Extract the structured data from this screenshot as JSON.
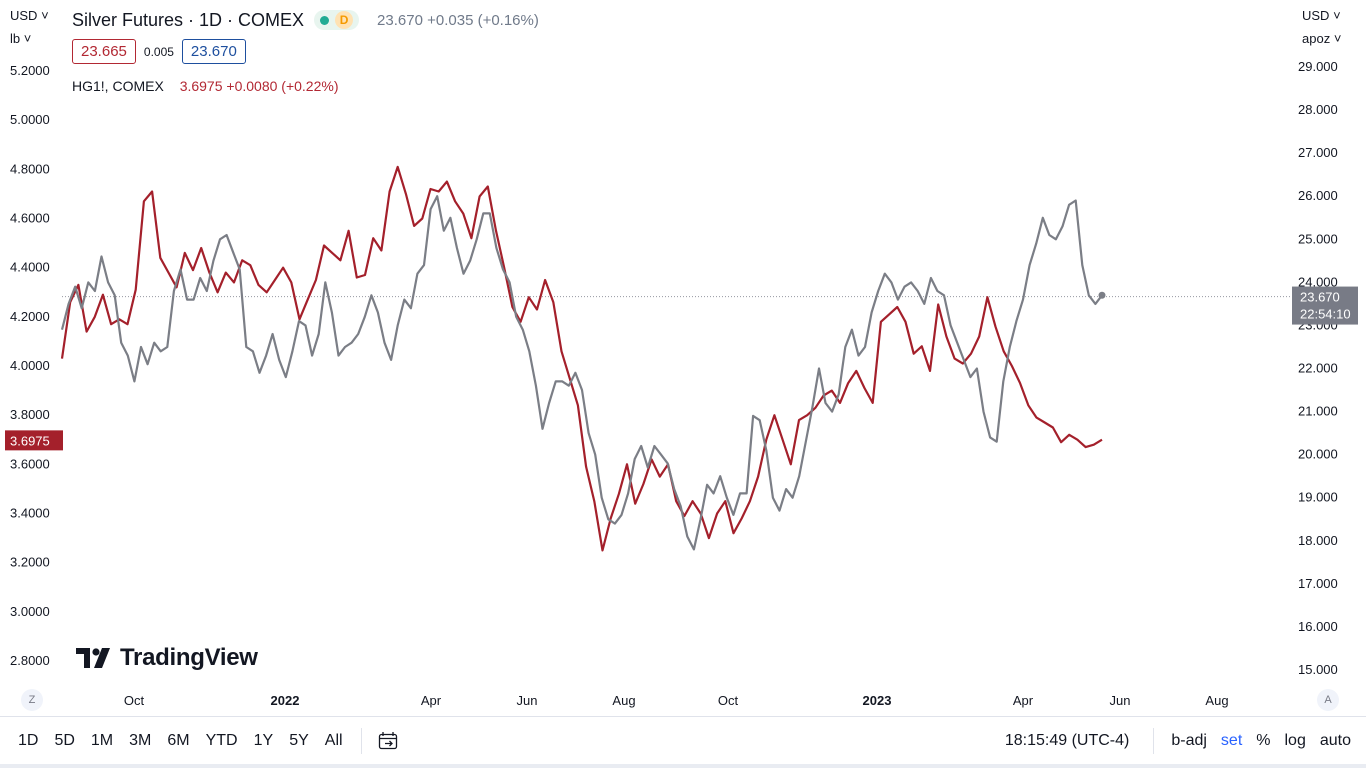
{
  "header": {
    "title": "Silver Futures · 1D · COMEX",
    "status_letter": "D",
    "last_price": "23.670",
    "change": "+0.035 (+0.16%)"
  },
  "quote": {
    "sell": "23.665",
    "spread": "0.005",
    "buy": "23.670"
  },
  "compare": {
    "symbol": "HG1!, COMEX",
    "value": "3.6975",
    "change": "+0.0080 (+0.22%)"
  },
  "left_axis": {
    "currency": "USD",
    "unit": "lb",
    "ticks": [
      "5.2000",
      "5.0000",
      "4.8000",
      "4.6000",
      "4.4000",
      "4.2000",
      "4.0000",
      "3.8000",
      "3.6000",
      "3.4000",
      "3.2000",
      "3.0000",
      "2.8000"
    ],
    "last_label": "3.6975"
  },
  "right_axis": {
    "currency": "USD",
    "unit": "apoz",
    "ticks": [
      "29.000",
      "28.000",
      "27.000",
      "26.000",
      "25.000",
      "24.000",
      "23.000",
      "22.000",
      "21.000",
      "20.000",
      "19.000",
      "18.000",
      "17.000",
      "16.000",
      "15.000"
    ],
    "last_label": "23.670",
    "countdown": "22:54:10"
  },
  "time_axis": {
    "labels": [
      {
        "text": "Oct",
        "bold": false
      },
      {
        "text": "2022",
        "bold": true
      },
      {
        "text": "Apr",
        "bold": false
      },
      {
        "text": "Jun",
        "bold": false
      },
      {
        "text": "Aug",
        "bold": false
      },
      {
        "text": "Oct",
        "bold": false
      },
      {
        "text": "2023",
        "bold": true
      },
      {
        "text": "Apr",
        "bold": false
      },
      {
        "text": "Jun",
        "bold": false
      },
      {
        "text": "Aug",
        "bold": false
      }
    ],
    "left_button": "Z",
    "right_button": "A"
  },
  "logo": {
    "text": "TradingView"
  },
  "bottom_bar": {
    "ranges": [
      "1D",
      "5D",
      "1M",
      "3M",
      "6M",
      "YTD",
      "1Y",
      "5Y",
      "All"
    ],
    "clock": "18:15:49 (UTC-4)",
    "options": [
      "b-adj",
      "set",
      "%",
      "log",
      "auto"
    ],
    "active_option": "set"
  },
  "colors": {
    "silver_line": "#7b7e86",
    "copper_line": "#a4202b",
    "copper_label_bg": "#a4202b",
    "silver_label_bg": "#787b86",
    "accent_blue": "#2962ff"
  },
  "chart_data": {
    "type": "line",
    "x_start": "2021-08-02",
    "x_end": "2023-05-19",
    "grid": false,
    "series": [
      {
        "name": "Silver Futures",
        "axis": "right",
        "unit": "USD/oz",
        "values": [
          22.9,
          23.5,
          23.9,
          23.4,
          24.0,
          23.8,
          24.6,
          24.0,
          23.7,
          22.6,
          22.3,
          21.7,
          22.5,
          22.1,
          22.6,
          22.4,
          22.5,
          23.8,
          24.3,
          23.6,
          23.6,
          24.1,
          23.8,
          24.5,
          25.0,
          25.1,
          24.7,
          24.3,
          22.5,
          22.4,
          21.9,
          22.3,
          22.8,
          22.2,
          21.8,
          22.4,
          23.1,
          23.0,
          22.3,
          22.8,
          24.0,
          23.3,
          22.3,
          22.5,
          22.6,
          22.8,
          23.2,
          23.7,
          23.3,
          22.6,
          22.2,
          23.0,
          23.6,
          23.4,
          24.2,
          24.4,
          25.7,
          26.0,
          25.2,
          25.5,
          24.8,
          24.2,
          24.5,
          25.0,
          25.6,
          25.6,
          24.8,
          24.3,
          24.0,
          23.2,
          22.9,
          22.4,
          21.6,
          20.6,
          21.2,
          21.7,
          21.7,
          21.6,
          21.9,
          21.5,
          20.5,
          20.0,
          19.0,
          18.5,
          18.4,
          18.6,
          19.1,
          19.9,
          20.2,
          19.7,
          20.2,
          20.0,
          19.8,
          19.2,
          18.8,
          18.1,
          17.8,
          18.5,
          19.3,
          19.1,
          19.5,
          19.0,
          18.6,
          19.1,
          19.1,
          20.9,
          20.8,
          20.1,
          19.0,
          18.7,
          19.2,
          19.0,
          19.5,
          20.3,
          21.1,
          22.0,
          21.2,
          21.0,
          21.4,
          22.5,
          22.9,
          22.3,
          22.5,
          23.3,
          23.8,
          24.2,
          24.0,
          23.6,
          23.9,
          24.0,
          23.8,
          23.5,
          24.1,
          23.8,
          23.7,
          23.0,
          22.6,
          22.2,
          21.8,
          22.0,
          21.0,
          20.4,
          20.3,
          21.7,
          22.5,
          23.1,
          23.6,
          24.4,
          24.9,
          25.5,
          25.1,
          25.0,
          25.3,
          25.8,
          25.9,
          24.4,
          23.7,
          23.5,
          23.7
        ]
      },
      {
        "name": "HG1!",
        "axis": "left",
        "unit": "USD/lb",
        "values": [
          4.03,
          4.26,
          4.33,
          4.14,
          4.2,
          4.29,
          4.17,
          4.19,
          4.17,
          4.31,
          4.67,
          4.71,
          4.44,
          4.38,
          4.32,
          4.46,
          4.39,
          4.48,
          4.38,
          4.3,
          4.38,
          4.34,
          4.43,
          4.41,
          4.33,
          4.3,
          4.35,
          4.4,
          4.34,
          4.19,
          4.27,
          4.35,
          4.49,
          4.46,
          4.43,
          4.55,
          4.36,
          4.37,
          4.52,
          4.47,
          4.71,
          4.81,
          4.7,
          4.57,
          4.6,
          4.72,
          4.71,
          4.75,
          4.67,
          4.62,
          4.52,
          4.69,
          4.73,
          4.55,
          4.4,
          4.24,
          4.18,
          4.28,
          4.23,
          4.35,
          4.26,
          4.06,
          3.95,
          3.84,
          3.59,
          3.45,
          3.25,
          3.38,
          3.48,
          3.6,
          3.44,
          3.52,
          3.62,
          3.55,
          3.6,
          3.45,
          3.39,
          3.45,
          3.4,
          3.3,
          3.4,
          3.45,
          3.32,
          3.38,
          3.45,
          3.55,
          3.7,
          3.8,
          3.7,
          3.6,
          3.78,
          3.8,
          3.83,
          3.88,
          3.9,
          3.85,
          3.93,
          3.98,
          3.91,
          3.85,
          4.18,
          4.21,
          4.24,
          4.18,
          4.05,
          4.08,
          3.98,
          4.25,
          4.12,
          4.03,
          4.01,
          4.05,
          4.12,
          4.28,
          4.16,
          4.06,
          4.0,
          3.93,
          3.84,
          3.79,
          3.77,
          3.75,
          3.69,
          3.72,
          3.7,
          3.67,
          3.68,
          3.7
        ]
      }
    ],
    "left_ylim": [
      2.8,
      5.2
    ],
    "right_ylim": [
      15.0,
      29.0
    ],
    "last_values": {
      "Silver Futures": 23.67,
      "HG1!": 3.6975
    }
  }
}
